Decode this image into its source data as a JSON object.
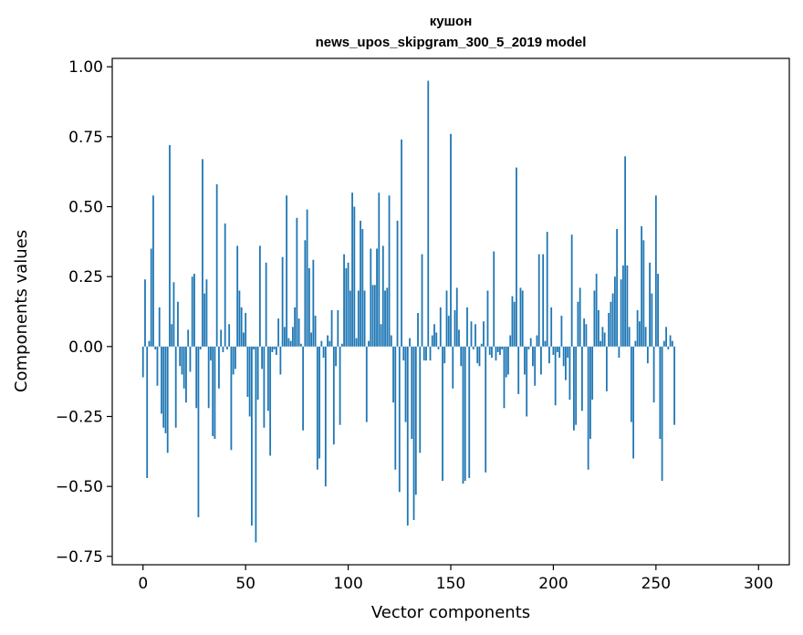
{
  "chart_data": {
    "type": "bar",
    "title": "кушон",
    "subtitle": "news_upos_skipgram_300_5_2019 model",
    "xlabel": "Vector components",
    "ylabel": "Components values",
    "xlim": [
      -15,
      315
    ],
    "ylim": [
      -0.78,
      1.03
    ],
    "xticks": [
      0,
      50,
      100,
      150,
      200,
      250,
      300
    ],
    "xtick_labels": [
      "0",
      "50",
      "100",
      "150",
      "200",
      "250",
      "300"
    ],
    "yticks": [
      -0.75,
      -0.5,
      -0.25,
      0.0,
      0.25,
      0.5,
      0.75,
      1.0
    ],
    "ytick_labels": [
      "−0.75",
      "−0.50",
      "−0.25",
      "0.00",
      "0.25",
      "0.50",
      "0.75",
      "1.00"
    ],
    "grid": false,
    "bar_color": "#1f77b4",
    "values": [
      -0.11,
      0.24,
      -0.47,
      0.02,
      0.35,
      0.54,
      -0.01,
      -0.14,
      0.14,
      -0.24,
      -0.29,
      -0.31,
      -0.38,
      0.72,
      0.08,
      0.23,
      -0.29,
      0.16,
      -0.07,
      -0.1,
      -0.15,
      -0.2,
      0.06,
      -0.09,
      0.25,
      0.26,
      -0.22,
      -0.61,
      -0.01,
      0.67,
      0.19,
      0.24,
      -0.22,
      -0.05,
      -0.32,
      -0.33,
      0.58,
      -0.15,
      0.06,
      -0.02,
      0.44,
      -0.01,
      0.08,
      -0.37,
      -0.1,
      -0.08,
      0.36,
      0.2,
      0.14,
      0.05,
      0.12,
      -0.18,
      -0.25,
      -0.64,
      -0.01,
      -0.7,
      -0.19,
      0.36,
      -0.08,
      -0.29,
      0.3,
      -0.23,
      -0.39,
      -0.02,
      -0.01,
      -0.03,
      0.1,
      -0.1,
      0.32,
      0.07,
      0.54,
      0.03,
      0.02,
      0.07,
      0.14,
      0.46,
      0.1,
      0.01,
      -0.3,
      0.38,
      0.49,
      0.28,
      0.05,
      0.31,
      0.11,
      -0.44,
      -0.4,
      0.02,
      -0.04,
      -0.5,
      0.04,
      0.02,
      0.13,
      -0.35,
      -0.07,
      0.13,
      -0.28,
      0.01,
      0.33,
      0.28,
      0.3,
      0.2,
      0.55,
      0.5,
      0.03,
      0.2,
      0.45,
      0.42,
      0.2,
      -0.27,
      0.02,
      0.35,
      0.22,
      0.22,
      0.35,
      0.55,
      0.08,
      0.36,
      0.2,
      0.21,
      0.54,
      0.04,
      -0.2,
      -0.44,
      0.45,
      -0.52,
      0.74,
      -0.05,
      -0.27,
      -0.64,
      0.03,
      -0.33,
      -0.62,
      -0.53,
      0.12,
      -0.38,
      0.33,
      -0.05,
      -0.05,
      0.95,
      -0.05,
      0.04,
      0.08,
      0.05,
      -0.01,
      0.14,
      -0.48,
      -0.06,
      0.2,
      0.11,
      0.76,
      -0.15,
      0.13,
      0.21,
      0.06,
      -0.07,
      -0.49,
      -0.48,
      0.14,
      -0.47,
      0.09,
      -0.01,
      0.08,
      -0.06,
      -0.07,
      0.01,
      0.09,
      -0.45,
      0.2,
      -0.03,
      -0.04,
      0.34,
      -0.05,
      -0.02,
      -0.03,
      -0.01,
      -0.22,
      -0.11,
      -0.1,
      0.04,
      0.18,
      0.16,
      0.64,
      -0.17,
      0.21,
      0.2,
      -0.1,
      -0.25,
      -0.01,
      0.03,
      -0.07,
      -0.14,
      0.04,
      0.33,
      -0.1,
      0.33,
      0.02,
      0.41,
      -0.06,
      0.14,
      -0.03,
      -0.21,
      -0.02,
      -0.04,
      0.11,
      -0.07,
      -0.12,
      -0.04,
      -0.19,
      0.4,
      -0.3,
      -0.28,
      0.16,
      0.21,
      -0.23,
      0.1,
      0.08,
      -0.44,
      -0.33,
      -0.19,
      0.2,
      0.26,
      0.13,
      0.02,
      0.07,
      0.05,
      -0.16,
      0.12,
      0.16,
      0.19,
      0.25,
      0.42,
      -0.04,
      0.24,
      0.29,
      0.68,
      0.29,
      0.07,
      -0.27,
      -0.4,
      0.02,
      0.13,
      0.09,
      0.43,
      0.38,
      0.07,
      -0.06,
      0.3,
      0.19,
      -0.2,
      0.54,
      0.26,
      -0.33,
      -0.48,
      0.02,
      0.07,
      -0.01,
      0.04,
      0.02,
      -0.28
    ]
  }
}
